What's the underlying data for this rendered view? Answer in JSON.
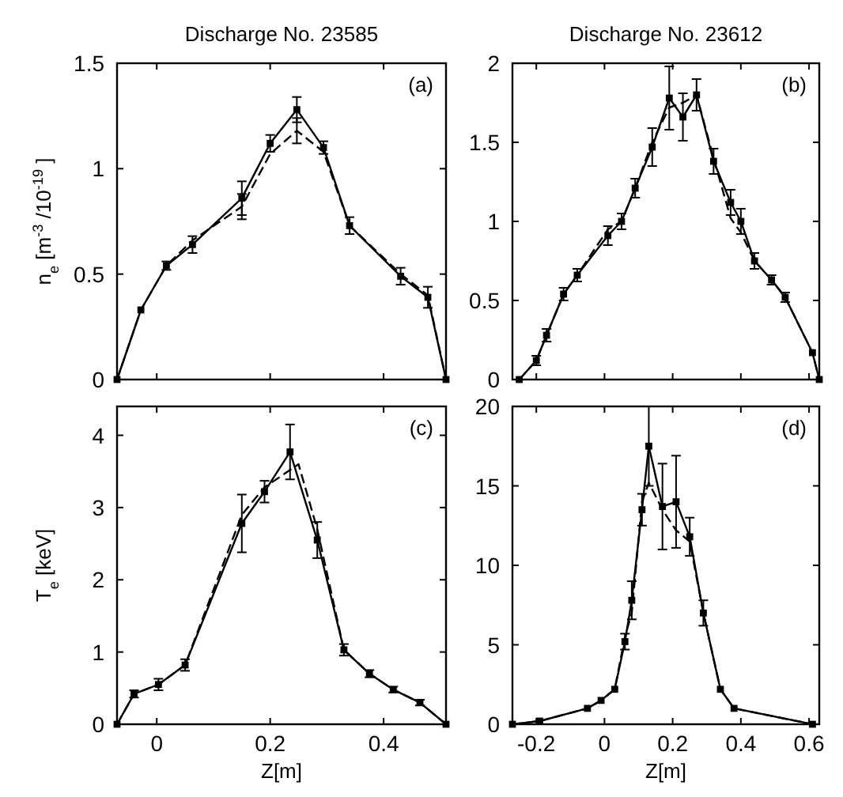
{
  "chart_data": [
    {
      "type": "line",
      "title": "Discharge No. 23585",
      "ylabel": "n$_{e}$ [m$^{-3}$ /10$^{-19}$ ]",
      "xlim": [
        -0.07,
        0.51
      ],
      "ylim": [
        0,
        1.5
      ],
      "xticks": [
        0,
        0.2,
        0.4
      ],
      "yticks": [
        0,
        0.5,
        1,
        1.5
      ],
      "tick_labels": "y",
      "annotations": [
        "(a)"
      ],
      "series": [
        {
          "color": "#000000",
          "line_style": "solid",
          "marker": "square",
          "x": [
            -0.07,
            -0.028,
            0.017,
            0.063,
            0.15,
            0.2,
            0.247,
            0.294,
            0.34,
            0.43,
            0.478,
            0.51
          ],
          "values": [
            0,
            0.33,
            0.54,
            0.64,
            0.86,
            1.12,
            1.28,
            1.1,
            0.73,
            0.49,
            0.39,
            0
          ],
          "errors": [
            null,
            null,
            0.02,
            0.04,
            0.08,
            0.04,
            0.06,
            0.03,
            0.04,
            0.04,
            0.05,
            null
          ]
        },
        {
          "color": "#000000",
          "line_style": "dashed",
          "marker": "none",
          "x": [
            -0.07,
            -0.028,
            0.017,
            0.063,
            0.15,
            0.2,
            0.247,
            0.294,
            0.34,
            0.43,
            0.478,
            0.51
          ],
          "values": [
            0,
            0.33,
            0.54,
            0.66,
            0.82,
            1.07,
            1.18,
            1.08,
            0.73,
            0.5,
            0.4,
            0
          ],
          "errors": [
            null,
            null,
            null,
            null,
            0.06,
            null,
            0.06,
            null,
            null,
            null,
            null,
            null
          ]
        }
      ]
    },
    {
      "type": "line",
      "title": "Discharge No. 23612",
      "xlim": [
        -0.27,
        0.63
      ],
      "ylim": [
        0,
        2
      ],
      "xticks": [
        -0.2,
        0,
        0.2,
        0.4,
        0.6
      ],
      "yticks": [
        0,
        0.5,
        1,
        1.5,
        2
      ],
      "tick_labels": "y",
      "annotations": [
        "(b)"
      ],
      "series": [
        {
          "color": "#000000",
          "line_style": "solid",
          "marker": "square",
          "x": [
            -0.25,
            -0.2,
            -0.17,
            -0.12,
            -0.08,
            0.01,
            0.05,
            0.09,
            0.14,
            0.19,
            0.23,
            0.27,
            0.32,
            0.37,
            0.4,
            0.44,
            0.49,
            0.53,
            0.61,
            0.63
          ],
          "values": [
            0,
            0.12,
            0.28,
            0.54,
            0.66,
            0.91,
            1.0,
            1.21,
            1.47,
            1.78,
            1.66,
            1.8,
            1.38,
            1.12,
            1.0,
            0.75,
            0.63,
            0.52,
            0.17,
            0
          ],
          "errors": [
            null,
            0.03,
            0.04,
            0.04,
            0.04,
            0.06,
            0.05,
            0.06,
            0.12,
            0.2,
            0.15,
            0.1,
            0.08,
            0.08,
            0.08,
            0.05,
            0.03,
            0.03,
            null,
            null
          ]
        },
        {
          "color": "#000000",
          "line_style": "dashed",
          "marker": "none",
          "x": [
            -0.25,
            -0.2,
            -0.17,
            -0.12,
            -0.08,
            0.01,
            0.05,
            0.09,
            0.14,
            0.19,
            0.23,
            0.27,
            0.32,
            0.37,
            0.4,
            0.44,
            0.49,
            0.53,
            0.61,
            0.63
          ],
          "values": [
            0,
            0.12,
            0.28,
            0.54,
            0.66,
            0.95,
            1.0,
            1.21,
            1.5,
            1.72,
            1.75,
            1.8,
            1.4,
            1.02,
            0.93,
            0.75,
            0.63,
            0.52,
            0.17,
            0
          ]
        }
      ]
    },
    {
      "type": "line",
      "xlabel": "Z[m]",
      "ylabel": "T$_{e}$ [keV]",
      "xlim": [
        -0.07,
        0.51
      ],
      "ylim": [
        0,
        4.4
      ],
      "xticks": [
        0,
        0.2,
        0.4
      ],
      "yticks": [
        0,
        1,
        2,
        3,
        4
      ],
      "annotations": [
        "(c)"
      ],
      "series": [
        {
          "color": "#000000",
          "line_style": "solid",
          "marker": "square",
          "x": [
            -0.07,
            -0.04,
            0.003,
            0.05,
            0.15,
            0.19,
            0.235,
            0.283,
            0.33,
            0.375,
            0.417,
            0.464,
            0.51
          ],
          "values": [
            0,
            0.42,
            0.55,
            0.82,
            2.78,
            3.22,
            3.77,
            2.55,
            1.03,
            0.7,
            0.48,
            0.3,
            0
          ],
          "errors": [
            null,
            0.05,
            0.08,
            0.08,
            0.4,
            0.15,
            0.38,
            0.25,
            0.08,
            0.05,
            0.04,
            0.04,
            null
          ]
        },
        {
          "color": "#000000",
          "line_style": "dashed",
          "marker": "none",
          "x": [
            -0.07,
            -0.04,
            0.003,
            0.05,
            0.15,
            0.19,
            0.25,
            0.283,
            0.33,
            0.375,
            0.417,
            0.464,
            0.51
          ],
          "values": [
            0,
            0.42,
            0.55,
            0.82,
            2.9,
            3.28,
            3.6,
            2.7,
            1.03,
            0.7,
            0.48,
            0.3,
            0
          ]
        }
      ]
    },
    {
      "type": "line",
      "xlabel": "Z[m]",
      "xlim": [
        -0.27,
        0.63
      ],
      "ylim": [
        0,
        20
      ],
      "xticks": [
        -0.2,
        0,
        0.2,
        0.4,
        0.6
      ],
      "yticks": [
        0,
        5,
        10,
        15,
        20
      ],
      "annotations": [
        "(d)"
      ],
      "series": [
        {
          "color": "#000000",
          "line_style": "solid",
          "marker": "square",
          "x": [
            -0.27,
            -0.19,
            -0.05,
            -0.01,
            0.03,
            0.06,
            0.08,
            0.11,
            0.13,
            0.17,
            0.21,
            0.25,
            0.29,
            0.34,
            0.38,
            0.61
          ],
          "values": [
            0,
            0.2,
            1.0,
            1.5,
            2.2,
            5.2,
            7.8,
            13.5,
            17.5,
            13.7,
            14.0,
            11.8,
            7.0,
            2.2,
            1.0,
            0
          ],
          "errors": [
            null,
            null,
            null,
            null,
            null,
            0.5,
            1.2,
            1.0,
            2.5,
            2.7,
            2.9,
            1.2,
            0.8,
            null,
            null,
            null
          ]
        },
        {
          "color": "#000000",
          "line_style": "dashed",
          "marker": "none",
          "x": [
            -0.27,
            -0.19,
            -0.05,
            -0.01,
            0.03,
            0.06,
            0.08,
            0.11,
            0.13,
            0.17,
            0.21,
            0.25,
            0.29,
            0.34,
            0.38,
            0.61
          ],
          "values": [
            0,
            0.2,
            1.0,
            1.5,
            2.2,
            5.5,
            7.0,
            14.0,
            15.2,
            13.5,
            12.2,
            11.5,
            7.0,
            2.2,
            1.0,
            0
          ]
        }
      ]
    }
  ]
}
